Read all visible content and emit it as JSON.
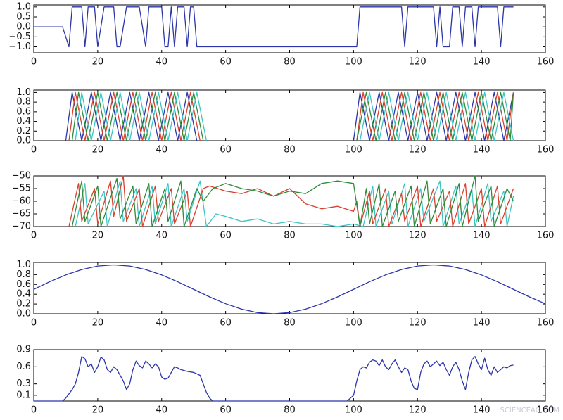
{
  "chart_data": [
    {
      "type": "line",
      "xlim": [
        0,
        160
      ],
      "xticks": [
        0,
        20,
        40,
        60,
        80,
        100,
        120,
        140,
        160
      ],
      "ylim": [
        -1.3,
        1.1
      ],
      "yticks": [
        {
          "value": -1.0,
          "label": "−1.0"
        },
        {
          "value": -0.5,
          "label": "−0.5"
        },
        {
          "value": 0.0,
          "label": "0.0"
        },
        0.5,
        {
          "value": 1.0,
          "label": "1.0"
        }
      ],
      "x": [
        0,
        9,
        11,
        12,
        15,
        16,
        17,
        19,
        20,
        22,
        25,
        26,
        27,
        29,
        33,
        35,
        36,
        40,
        41,
        42,
        43,
        44,
        45,
        47,
        48,
        49,
        50,
        51,
        101,
        102,
        115,
        116,
        117,
        125,
        126,
        127,
        128,
        130,
        131,
        133,
        134,
        135,
        137,
        138,
        139,
        145,
        146,
        147,
        150
      ],
      "series": [
        {
          "color": "#2b35a8",
          "values": [
            0,
            0,
            -1,
            1,
            1,
            -1,
            1,
            1,
            -1,
            1,
            1,
            -1,
            -1,
            1,
            1,
            -1,
            1,
            1,
            -1,
            -1,
            1,
            -1,
            1,
            1,
            -1,
            1,
            1,
            -1,
            -1,
            1,
            1,
            -1,
            1,
            1,
            -1,
            1,
            -1,
            -1,
            1,
            1,
            -1,
            1,
            1,
            -1,
            1,
            1,
            -1,
            1,
            1
          ]
        }
      ]
    },
    {
      "type": "line",
      "xlim": [
        0,
        160
      ],
      "xticks": [
        0,
        20,
        40,
        60,
        80,
        100,
        120,
        140,
        160
      ],
      "ylim": [
        0,
        1.05
      ],
      "yticks": [
        {
          "value": 0.0,
          "label": "0.0"
        },
        0.2,
        0.4,
        0.6,
        0.8,
        {
          "value": 1.0,
          "label": "1.0"
        }
      ],
      "series": [
        {
          "color": "#2b35a8",
          "x": [
            10,
            12,
            15,
            18,
            21,
            24,
            27,
            30,
            33,
            36,
            39,
            42,
            45,
            48,
            51,
            75,
            100,
            102,
            105,
            108,
            111,
            114,
            117,
            120,
            123,
            126,
            129,
            132,
            135,
            138,
            141,
            144,
            147,
            150
          ],
          "values": [
            0,
            1,
            0,
            1,
            0,
            1,
            0,
            1,
            0,
            1,
            0,
            1,
            0,
            1,
            0,
            null,
            0,
            1,
            0,
            1,
            0,
            1,
            0,
            1,
            0,
            1,
            0,
            1,
            0,
            1,
            0,
            1,
            0,
            1
          ]
        },
        {
          "color": "#d9402e",
          "x": [
            11,
            13,
            16,
            19,
            22,
            25,
            28,
            31,
            34,
            37,
            40,
            43,
            46,
            49,
            52,
            75,
            101,
            103,
            106,
            109,
            112,
            115,
            118,
            121,
            124,
            127,
            130,
            133,
            136,
            139,
            142,
            145,
            148,
            150
          ],
          "values": [
            0,
            1,
            0,
            1,
            0,
            1,
            0,
            1,
            0,
            1,
            0,
            1,
            0,
            1,
            0,
            null,
            0,
            1,
            0,
            1,
            0,
            1,
            0,
            1,
            0,
            1,
            0,
            1,
            0,
            1,
            0,
            1,
            0,
            1
          ]
        },
        {
          "color": "#2e8b3a",
          "x": [
            12,
            14,
            17,
            20,
            23,
            26,
            29,
            32,
            35,
            38,
            41,
            44,
            47,
            50,
            53,
            75,
            101,
            104,
            107,
            110,
            113,
            116,
            119,
            122,
            125,
            128,
            131,
            134,
            137,
            140,
            143,
            146,
            149,
            150
          ],
          "values": [
            0,
            1,
            0,
            1,
            0,
            1,
            0,
            1,
            0,
            1,
            0,
            1,
            0,
            1,
            0,
            null,
            0,
            1,
            0,
            1,
            0,
            1,
            0,
            1,
            0,
            1,
            0,
            1,
            0,
            1,
            0,
            1,
            0,
            1
          ]
        },
        {
          "color": "#3cc4c4",
          "x": [
            13,
            15,
            18,
            21,
            24,
            27,
            30,
            33,
            36,
            39,
            42,
            45,
            48,
            51,
            54,
            75,
            102,
            105,
            108,
            111,
            114,
            117,
            120,
            123,
            126,
            129,
            132,
            135,
            138,
            141,
            144,
            147,
            150
          ],
          "values": [
            0,
            1,
            0,
            1,
            0,
            1,
            0,
            1,
            0,
            1,
            0,
            1,
            0,
            1,
            0,
            null,
            0,
            1,
            0,
            1,
            0,
            1,
            0,
            1,
            0,
            1,
            0,
            1,
            0,
            1,
            0,
            1,
            0
          ]
        }
      ]
    },
    {
      "type": "line",
      "xlim": [
        0,
        160
      ],
      "xticks": [
        0,
        20,
        40,
        60,
        80,
        100,
        120,
        140,
        160
      ],
      "ylim": [
        -70,
        -50
      ],
      "yticks": [
        {
          "value": -70,
          "label": "−70"
        },
        {
          "value": -65,
          "label": "−65"
        },
        {
          "value": -60,
          "label": "−60"
        },
        {
          "value": -55,
          "label": "−55"
        },
        {
          "value": -50,
          "label": "−50"
        }
      ],
      "series": [
        {
          "color": "#3cc4c4",
          "x": [
            13,
            16,
            17,
            22,
            23,
            27,
            28,
            32,
            33,
            37,
            38,
            42,
            43,
            47,
            48,
            52,
            54,
            57,
            60,
            65,
            70,
            75,
            80,
            85,
            90,
            95,
            100,
            103,
            106,
            107,
            111,
            112,
            116,
            117,
            121,
            122,
            127,
            128,
            132,
            133,
            137,
            138,
            142,
            143,
            147,
            148,
            150
          ],
          "values": [
            -70,
            -53,
            -69,
            -56,
            -70,
            -52,
            -68,
            -55,
            -70,
            -54,
            -69,
            -53,
            -70,
            -55,
            -68,
            -52,
            -70,
            -65,
            -66,
            -68,
            -67,
            -69,
            -68,
            -69,
            -69,
            -70,
            -69,
            -70,
            -54,
            -70,
            -56,
            -69,
            -53,
            -70,
            -55,
            -68,
            -52,
            -70,
            -54,
            -69,
            -55,
            -70,
            -53,
            -68,
            -56,
            -70,
            -58
          ]
        },
        {
          "color": "#d9402e",
          "x": [
            11,
            14,
            15,
            19,
            20,
            24,
            25,
            28,
            29,
            33,
            34,
            38,
            39,
            43,
            44,
            48,
            49,
            53,
            55,
            60,
            65,
            70,
            75,
            80,
            85,
            90,
            95,
            100,
            101,
            102,
            105,
            106,
            110,
            111,
            115,
            116,
            120,
            121,
            125,
            126,
            130,
            131,
            135,
            136,
            140,
            141,
            145,
            146,
            150
          ],
          "values": [
            -70,
            -53,
            -68,
            -55,
            -69,
            -52,
            -66,
            -50,
            -68,
            -55,
            -70,
            -54,
            -68,
            -55,
            -69,
            -56,
            -70,
            -55,
            -54,
            -56,
            -57,
            -55,
            -58,
            -55,
            -61,
            -63,
            -62,
            -64,
            -60,
            -70,
            -56,
            -69,
            -55,
            -70,
            -57,
            -68,
            -54,
            -70,
            -55,
            -68,
            -56,
            -70,
            -53,
            -69,
            -55,
            -70,
            -54,
            -69,
            -55
          ]
        },
        {
          "color": "#2e8b3a",
          "x": [
            12,
            15,
            16,
            20,
            21,
            26,
            27,
            31,
            32,
            36,
            37,
            41,
            42,
            46,
            47,
            51,
            53,
            56,
            60,
            65,
            70,
            75,
            80,
            85,
            90,
            95,
            100,
            102,
            104,
            105,
            108,
            109,
            113,
            114,
            118,
            119,
            123,
            124,
            128,
            129,
            133,
            134,
            138,
            139,
            143,
            144,
            148,
            150
          ],
          "values": [
            -70,
            -52,
            -68,
            -54,
            -70,
            -51,
            -67,
            -54,
            -69,
            -53,
            -70,
            -55,
            -68,
            -52,
            -70,
            -55,
            -60,
            -55,
            -53,
            -55,
            -56,
            -58,
            -56,
            -57,
            -53,
            -52,
            -53,
            -70,
            -55,
            -69,
            -53,
            -70,
            -56,
            -68,
            -54,
            -70,
            -52,
            -69,
            -55,
            -70,
            -53,
            -70,
            -50,
            -68,
            -54,
            -70,
            -55,
            -60
          ]
        }
      ]
    },
    {
      "type": "line",
      "xlim": [
        0,
        160
      ],
      "xticks": [
        0,
        20,
        40,
        60,
        80,
        100,
        120,
        140,
        160
      ],
      "ylim": [
        0,
        1.05
      ],
      "yticks": [
        {
          "value": 0.0,
          "label": "0.0"
        },
        0.2,
        0.4,
        0.6,
        0.8,
        {
          "value": 1.0,
          "label": "1.0"
        }
      ],
      "x": [
        0,
        5,
        10,
        15,
        20,
        25,
        30,
        35,
        40,
        45,
        50,
        55,
        60,
        65,
        70,
        75,
        80,
        85,
        90,
        95,
        100,
        105,
        110,
        115,
        120,
        125,
        130,
        135,
        140,
        145,
        150,
        155,
        160
      ],
      "series": [
        {
          "color": "#2b35a8",
          "values": [
            0.5,
            0.655,
            0.794,
            0.905,
            0.976,
            1.0,
            0.976,
            0.905,
            0.794,
            0.655,
            0.5,
            0.345,
            0.206,
            0.095,
            0.024,
            0,
            0.024,
            0.095,
            0.206,
            0.345,
            0.5,
            0.655,
            0.794,
            0.905,
            0.976,
            1.0,
            0.976,
            0.905,
            0.794,
            0.655,
            0.5,
            0.345,
            0.206
          ]
        }
      ]
    },
    {
      "type": "line",
      "xlim": [
        0,
        160
      ],
      "xticks": [
        0,
        20,
        40,
        60,
        80,
        100,
        120,
        140,
        160
      ],
      "ylim": [
        0,
        0.9
      ],
      "yticks": [
        0.1,
        0.3,
        0.6,
        0.9
      ],
      "x": [
        0,
        9,
        10,
        12,
        13,
        14,
        15,
        16,
        17,
        18,
        19,
        20,
        21,
        22,
        23,
        24,
        25,
        26,
        27,
        28,
        29,
        30,
        31,
        32,
        33,
        34,
        35,
        36,
        37,
        38,
        39,
        40,
        41,
        42,
        43,
        44,
        45,
        46,
        48,
        50,
        52,
        53,
        54,
        55,
        56,
        98,
        100,
        101,
        102,
        103,
        104,
        105,
        106,
        107,
        108,
        109,
        110,
        111,
        112,
        113,
        114,
        115,
        116,
        117,
        118,
        119,
        120,
        121,
        122,
        123,
        124,
        125,
        126,
        127,
        128,
        129,
        130,
        131,
        132,
        133,
        134,
        135,
        136,
        137,
        138,
        139,
        140,
        141,
        142,
        143,
        144,
        145,
        146,
        147,
        148,
        149,
        150
      ],
      "series": [
        {
          "color": "#2b35a8",
          "values": [
            0,
            0,
            0.05,
            0.2,
            0.3,
            0.5,
            0.78,
            0.74,
            0.6,
            0.65,
            0.5,
            0.6,
            0.77,
            0.72,
            0.55,
            0.5,
            0.6,
            0.55,
            0.45,
            0.35,
            0.2,
            0.3,
            0.55,
            0.7,
            0.62,
            0.58,
            0.7,
            0.65,
            0.58,
            0.65,
            0.6,
            0.42,
            0.38,
            0.4,
            0.5,
            0.6,
            0.58,
            0.55,
            0.52,
            0.5,
            0.45,
            0.3,
            0.15,
            0.05,
            0,
            0,
            0.1,
            0.35,
            0.55,
            0.6,
            0.58,
            0.68,
            0.72,
            0.7,
            0.62,
            0.72,
            0.6,
            0.55,
            0.65,
            0.72,
            0.6,
            0.5,
            0.58,
            0.55,
            0.35,
            0.22,
            0.2,
            0.5,
            0.65,
            0.7,
            0.6,
            0.65,
            0.7,
            0.62,
            0.68,
            0.55,
            0.45,
            0.6,
            0.68,
            0.55,
            0.35,
            0.2,
            0.5,
            0.72,
            0.78,
            0.65,
            0.55,
            0.75,
            0.55,
            0.45,
            0.6,
            0.5,
            0.55,
            0.6,
            0.58,
            0.62,
            0.63
          ]
        }
      ]
    }
  ],
  "watermark": "SCIENCEAG.COM"
}
